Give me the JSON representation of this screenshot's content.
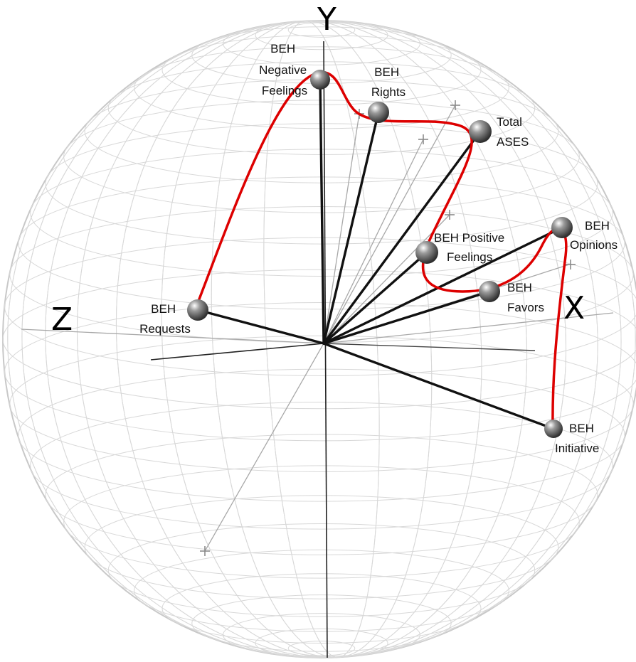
{
  "axes": {
    "y_label": "Y",
    "x_label": "X",
    "z_label": "Z"
  },
  "nodes": [
    {
      "id": "beh-negative-feelings",
      "lines": [
        "BEH",
        "Negative",
        "Feelings"
      ]
    },
    {
      "id": "beh-rights",
      "lines": [
        "BEH",
        "Rights"
      ]
    },
    {
      "id": "total-ases",
      "lines": [
        "Total",
        "ASES"
      ]
    },
    {
      "id": "beh-positive-feelings",
      "lines": [
        "BEH Positive",
        "Feelings"
      ]
    },
    {
      "id": "beh-opinions",
      "lines": [
        "BEH",
        "Opinions"
      ]
    },
    {
      "id": "beh-favors",
      "lines": [
        "BEH",
        "Favors"
      ]
    },
    {
      "id": "beh-requests",
      "lines": [
        "BEH",
        "Requests"
      ]
    },
    {
      "id": "beh-initiative",
      "lines": [
        "BEH",
        "Initiative"
      ]
    }
  ],
  "colors": {
    "sphere_grid": "#d8d8d8",
    "sphere_outline": "#c8c8c8",
    "vector": "#111111",
    "faint_vector": "#a8a8a8",
    "path": "#dd0000",
    "node": "#555555"
  }
}
